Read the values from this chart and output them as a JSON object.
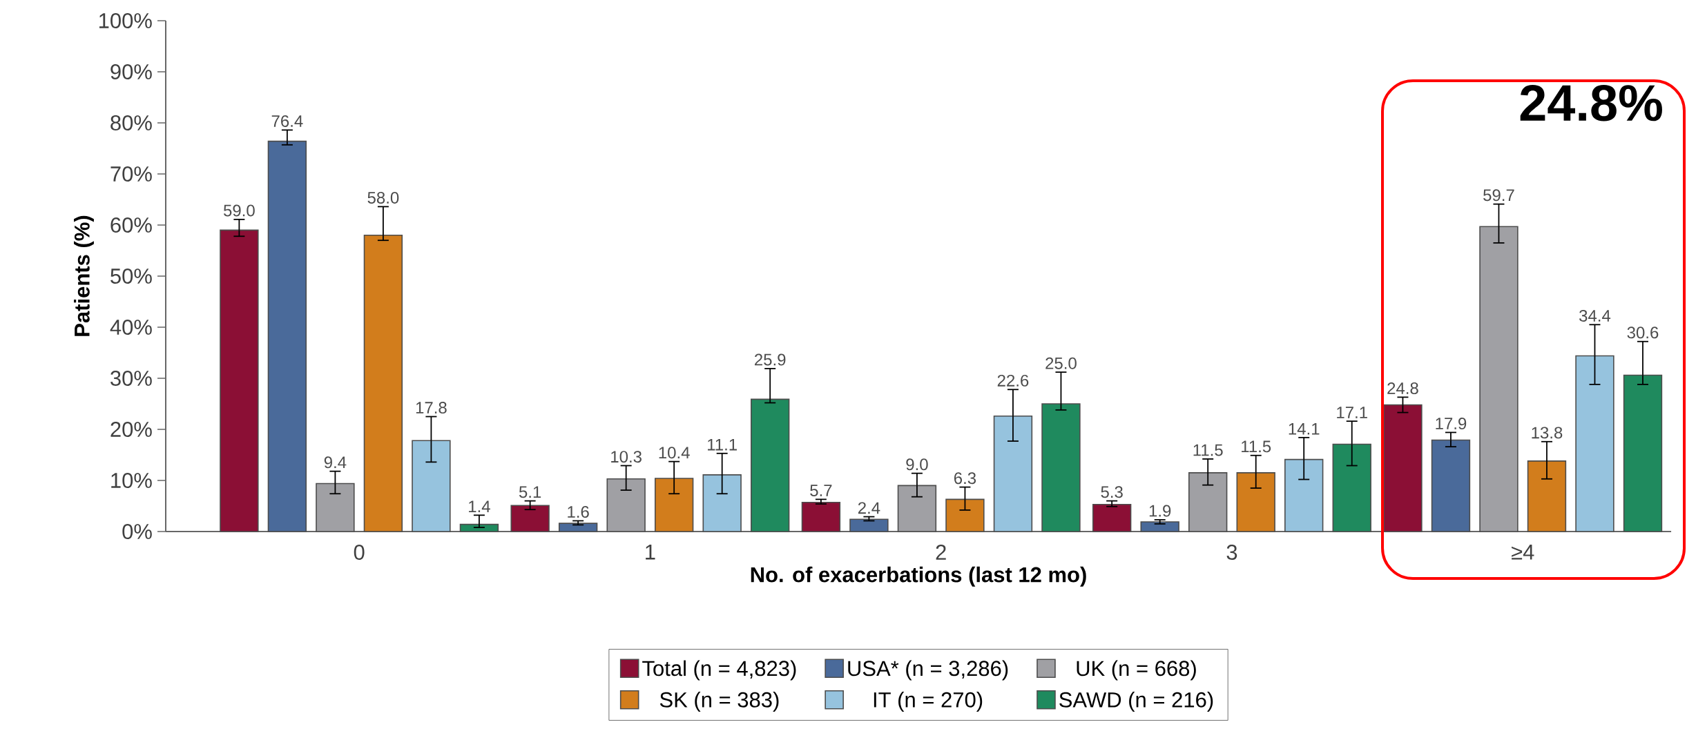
{
  "chart_data": {
    "type": "bar",
    "xlabel": "No. of exacerbations (last 12 mo)",
    "ylabel": "Patients (%)",
    "categories": [
      "0",
      "1",
      "2",
      "3",
      "≥4"
    ],
    "ylim": [
      0,
      100
    ],
    "yticks": [
      {
        "value": 0,
        "label": "0%"
      },
      {
        "value": 10,
        "label": "10%"
      },
      {
        "value": 20,
        "label": "20%"
      },
      {
        "value": 30,
        "label": "30%"
      },
      {
        "value": 40,
        "label": "40%"
      },
      {
        "value": 50,
        "label": "50%"
      },
      {
        "value": 60,
        "label": "60%"
      },
      {
        "value": 70,
        "label": "70%"
      },
      {
        "value": 80,
        "label": "80%"
      },
      {
        "value": 90,
        "label": "90%"
      },
      {
        "value": 100,
        "label": "100%"
      }
    ],
    "legend": "bottom",
    "annotations": [
      "24.8%"
    ],
    "series": [
      {
        "name": "Total (n = 4,823)",
        "color": "#8b0f35",
        "values": [
          59.0,
          5.1,
          5.7,
          5.3,
          24.8
        ],
        "value_labels": [
          "59.0",
          "5.1",
          "5.7",
          "5.3",
          "24.8"
        ],
        "errors": [
          [
            57.8,
            61.1
          ],
          [
            4.3,
            6.0
          ],
          [
            5.4,
            6.3
          ],
          [
            4.9,
            6.0
          ],
          [
            23.3,
            26.3
          ]
        ]
      },
      {
        "name": "USA* (n = 3,286)",
        "color": "#4a6a9a",
        "values": [
          76.4,
          1.6,
          2.4,
          1.9,
          17.9
        ],
        "value_labels": [
          "76.4",
          "1.6",
          "2.4",
          "1.9",
          "17.9"
        ],
        "errors": [
          [
            75.7,
            78.6
          ],
          [
            1.3,
            2.1
          ],
          [
            2.1,
            2.9
          ],
          [
            1.5,
            2.3
          ],
          [
            16.6,
            19.4
          ]
        ]
      },
      {
        "name": "UK (n = 668)",
        "color": "#a0a0a4",
        "values": [
          9.4,
          10.3,
          9.0,
          11.5,
          59.7
        ],
        "value_labels": [
          "9.4",
          "10.3",
          "9.0",
          "11.5",
          "59.7"
        ],
        "errors": [
          [
            7.4,
            11.8
          ],
          [
            8.1,
            12.9
          ],
          [
            6.8,
            11.4
          ],
          [
            9.1,
            14.2
          ],
          [
            56.5,
            64.1
          ]
        ]
      },
      {
        "name": "SK (n = 383)",
        "color": "#d27d1c",
        "values": [
          58.0,
          10.4,
          6.3,
          11.5,
          13.8
        ],
        "value_labels": [
          "58.0",
          "10.4",
          "6.3",
          "11.5",
          "13.8"
        ],
        "errors": [
          [
            57.0,
            63.6
          ],
          [
            7.4,
            13.7
          ],
          [
            4.2,
            8.7
          ],
          [
            8.5,
            14.9
          ],
          [
            10.3,
            17.6
          ]
        ]
      },
      {
        "name": "IT (n = 270)",
        "color": "#96c3de",
        "values": [
          17.8,
          11.1,
          22.6,
          14.1,
          34.4
        ],
        "value_labels": [
          "17.8",
          "11.1",
          "22.6",
          "14.1",
          "34.4"
        ],
        "errors": [
          [
            13.6,
            22.5
          ],
          [
            7.4,
            15.3
          ],
          [
            17.7,
            27.8
          ],
          [
            10.2,
            18.4
          ],
          [
            28.8,
            40.5
          ]
        ]
      },
      {
        "name": "SAWD (n = 216)",
        "color": "#1f8a5e",
        "values": [
          1.4,
          25.9,
          25.0,
          17.1,
          30.6
        ],
        "value_labels": [
          "1.4",
          "25.9",
          "25.0",
          "17.1",
          "30.6"
        ],
        "errors": [
          [
            0.8,
            3.2
          ],
          [
            25.2,
            31.9
          ],
          [
            23.8,
            31.2
          ],
          [
            12.9,
            21.6
          ],
          [
            28.8,
            37.2
          ]
        ]
      }
    ]
  }
}
